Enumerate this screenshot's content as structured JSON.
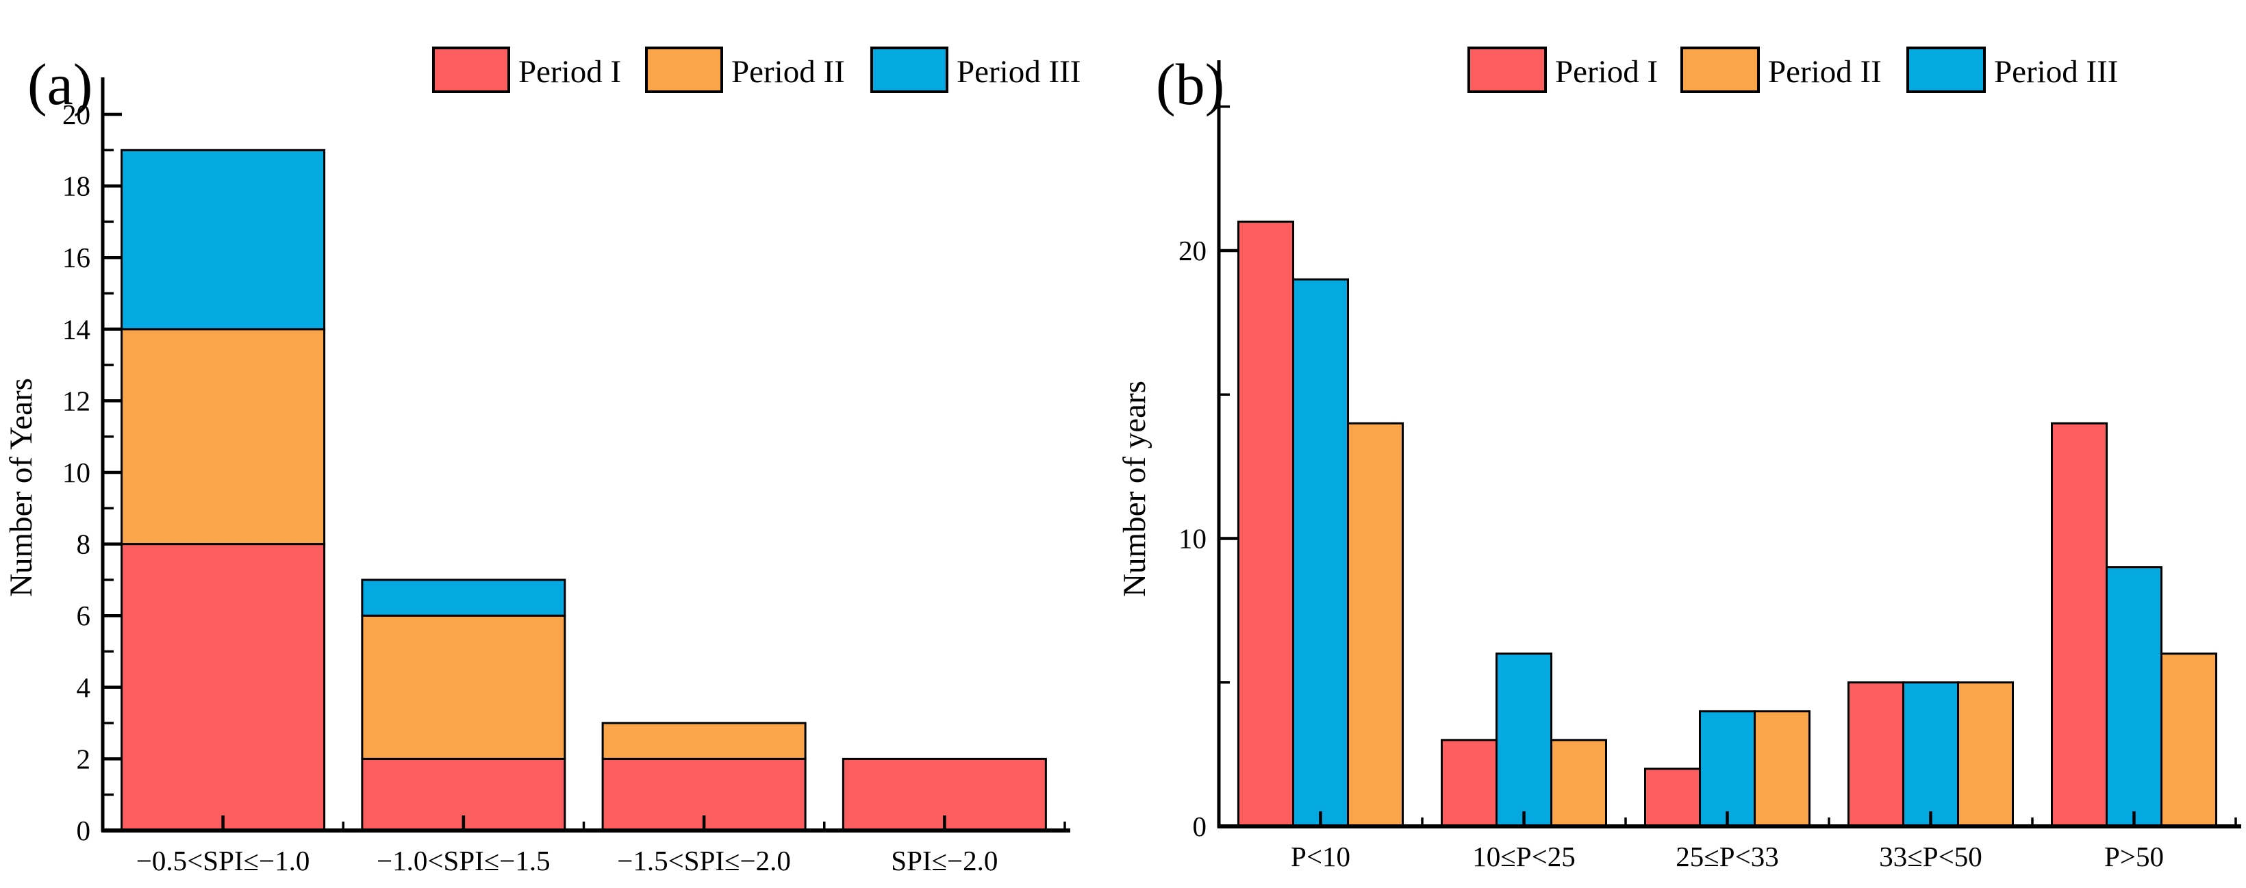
{
  "figure": {
    "background": "#ffffff",
    "axis_color": "#000000",
    "legend_labels": [
      "Period I",
      "Period II",
      "Period III"
    ],
    "series_colors": {
      "Period I": "#FC5E60",
      "Period II": "#FBA54B",
      "Period III": "#05A9E2"
    }
  },
  "chart_data": [
    {
      "type": "bar",
      "subtype": "stacked",
      "panel_label": "(a)",
      "title": "",
      "xlabel": "",
      "ylabel": "Number of Years",
      "categories": [
        "−0.5<SPI≤−1.0",
        "−1.0<SPI≤−1.5",
        "−1.5<SPI≤−2.0",
        "SPI≤−2.0"
      ],
      "series": [
        {
          "name": "Period I",
          "color": "#FC5E60",
          "values": [
            8,
            2,
            2,
            2
          ]
        },
        {
          "name": "Period II",
          "color": "#FBA54B",
          "values": [
            6,
            4,
            1,
            0
          ]
        },
        {
          "name": "Period III",
          "color": "#05A9E2",
          "values": [
            5,
            1,
            0,
            0
          ]
        }
      ],
      "stack_totals": [
        19,
        7,
        3,
        2
      ],
      "ylim": [
        0,
        21
      ],
      "yticks_major": [
        0,
        2,
        4,
        6,
        8,
        10,
        12,
        14,
        16,
        18,
        20
      ],
      "yticks_minor": [
        1,
        3,
        5,
        7,
        9,
        11,
        13,
        15,
        17,
        19
      ],
      "grid": false,
      "legend_position": "top",
      "legend": [
        "Period I",
        "Period II",
        "Period III"
      ]
    },
    {
      "type": "bar",
      "subtype": "grouped",
      "panel_label": "(b)",
      "title": "",
      "xlabel": "",
      "ylabel": "Number of years",
      "categories": [
        "P<10",
        "10≤P<25",
        "25≤P<33",
        "33≤P<50",
        "P>50"
      ],
      "series": [
        {
          "name": "Period I",
          "color": "#FC5E60",
          "values": [
            21,
            3,
            2,
            5,
            14
          ]
        },
        {
          "name": "Period II",
          "color": "#FBA54B",
          "values": [
            14,
            3,
            4,
            5,
            6
          ]
        },
        {
          "name": "Period III",
          "color": "#05A9E2",
          "values": [
            19,
            6,
            4,
            5,
            9
          ]
        }
      ],
      "bar_order": [
        "Period I",
        "Period III",
        "Period II"
      ],
      "ylim": [
        0,
        26.6
      ],
      "yticks_major": [
        0,
        10,
        20
      ],
      "yticks_minor": [
        5,
        15,
        25
      ],
      "grid": false,
      "legend_position": "top",
      "legend": [
        "Period I",
        "Period II",
        "Period III"
      ]
    }
  ]
}
